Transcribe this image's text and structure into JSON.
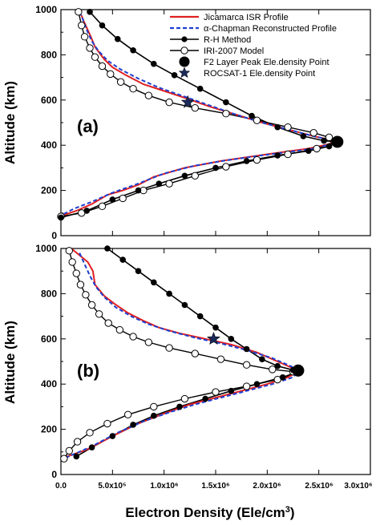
{
  "colors": {
    "isr": "#e02020",
    "chapman": "#1f3fd0",
    "rh": "#000000",
    "iri": "#000000",
    "star": "#1a2a5a"
  },
  "legend": {
    "isr": "Jicamarca ISR Profile",
    "chapman": "α-Chapman Reconstructed Profile",
    "rh": "R-H Method",
    "iri": "IRI-2007 Model",
    "peak": "F2 Layer Peak Ele.density Point",
    "rocsat": "ROCSAT-1 Ele.density Point"
  },
  "xlabel": "Electron Density (Ele/cm3)",
  "chart_data": [
    {
      "type": "line",
      "panel_label": "(a)",
      "xlim": [
        0,
        3000000
      ],
      "ylim": [
        0,
        1000
      ],
      "ylabel": "Altitude (km)",
      "yticks": [
        0,
        200,
        400,
        600,
        800,
        1000
      ],
      "peak": {
        "x": 2680000,
        "y": 415
      },
      "rocsat": {
        "x": 1230000,
        "y": 590
      },
      "series": [
        {
          "name": "Jicamarca ISR Profile",
          "key": "isr",
          "x": [
            200000,
            220000,
            290000,
            330000,
            420000,
            500000,
            630000,
            800000,
            1000000,
            1200000,
            1450000,
            1700000,
            1950000,
            2200000,
            2450000,
            2650000,
            2600000,
            2400000,
            2150000,
            1850000,
            1550000,
            1200000,
            900000,
            750000,
            600000,
            450000,
            300000,
            150000,
            20000
          ],
          "y": [
            975,
            950,
            880,
            835,
            780,
            745,
            710,
            670,
            640,
            610,
            570,
            535,
            500,
            470,
            440,
            420,
            405,
            385,
            370,
            350,
            330,
            300,
            260,
            225,
            200,
            180,
            140,
            110,
            90
          ]
        },
        {
          "name": "α-Chapman Reconstructed Profile",
          "key": "chapman",
          "x": [
            180000,
            210000,
            250000,
            300000,
            360000,
            450000,
            580000,
            750000,
            950000,
            1200000,
            1450000,
            1700000,
            1950000,
            2200000,
            2450000,
            2650000,
            2620000,
            2450000,
            2200000,
            1900000,
            1600000,
            1300000,
            1000000,
            750000,
            500000,
            300000,
            130000,
            0
          ],
          "y": [
            990,
            960,
            910,
            860,
            820,
            775,
            735,
            695,
            655,
            615,
            575,
            535,
            500,
            470,
            440,
            420,
            405,
            385,
            370,
            352,
            333,
            310,
            275,
            230,
            190,
            150,
            120,
            90
          ]
        }
      ],
      "rh": {
        "name": "R-H Method",
        "x": [
          280000,
          400000,
          550000,
          700000,
          900000,
          1100000,
          1350000,
          1600000,
          1850000,
          2100000,
          2350000,
          2550000,
          2680000,
          2600000,
          2400000,
          2100000,
          1800000,
          1500000,
          1200000,
          950000,
          750000,
          500000,
          250000,
          0
        ],
        "y": [
          990,
          930,
          870,
          820,
          760,
          710,
          650,
          590,
          530,
          480,
          440,
          420,
          415,
          395,
          375,
          355,
          330,
          300,
          265,
          230,
          200,
          160,
          110,
          80
        ]
      },
      "iri": {
        "name": "IRI-2007 Model",
        "x": [
          170000,
          200000,
          230000,
          280000,
          330000,
          400000,
          480000,
          580000,
          700000,
          850000,
          1050000,
          1300000,
          1600000,
          1900000,
          2200000,
          2450000,
          2600000,
          2650000,
          2480000,
          2200000,
          1900000,
          1600000,
          1300000,
          1050000,
          800000,
          600000,
          400000,
          200000,
          0
        ],
        "y": [
          990,
          930,
          880,
          830,
          790,
          750,
          715,
          680,
          650,
          620,
          590,
          565,
          540,
          510,
          480,
          455,
          435,
          415,
          385,
          360,
          335,
          305,
          265,
          230,
          200,
          165,
          130,
          100,
          85
        ]
      }
    },
    {
      "type": "line",
      "panel_label": "(b)",
      "xlim": [
        0,
        3000000
      ],
      "ylim": [
        0,
        1000
      ],
      "ylabel": "Altitude (km)",
      "yticks": [
        0,
        200,
        400,
        600,
        800,
        1000
      ],
      "xticks": [
        "0.0",
        "5.0x10⁵",
        "1.0x10⁶",
        "1.5x10⁶",
        "2.0x10⁶",
        "2.5x10⁶",
        "3.0x10⁶"
      ],
      "peak": {
        "x": 2300000,
        "y": 460
      },
      "rocsat": {
        "x": 1480000,
        "y": 600
      },
      "series": [
        {
          "name": "Jicamarca ISR Profile",
          "key": "isr",
          "x": [
            100000,
            260000,
            310000,
            330000,
            420000,
            520000,
            650000,
            800000,
            950000,
            1150000,
            1400000,
            1650000,
            1900000,
            2100000,
            2250000,
            2300000,
            2200000,
            2000000,
            1750000,
            1500000,
            1250000,
            1000000,
            750000,
            500000,
            250000,
            0
          ],
          "y": [
            1000,
            940,
            900,
            840,
            790,
            755,
            715,
            680,
            650,
            625,
            600,
            575,
            540,
            500,
            470,
            455,
            430,
            400,
            370,
            340,
            310,
            270,
            225,
            170,
            110,
            70
          ]
        },
        {
          "name": "α-Chapman Reconstructed Profile",
          "key": "chapman",
          "x": [
            180000,
            230000,
            280000,
            340000,
            420000,
            530000,
            680000,
            850000,
            1050000,
            1300000,
            1550000,
            1800000,
            2050000,
            2250000,
            2300000,
            2250000,
            2050000,
            1800000,
            1550000,
            1300000,
            1050000,
            800000,
            550000,
            300000,
            50000
          ],
          "y": [
            980,
            930,
            880,
            830,
            785,
            740,
            700,
            665,
            635,
            605,
            580,
            550,
            515,
            475,
            455,
            430,
            400,
            370,
            340,
            310,
            275,
            235,
            185,
            125,
            75
          ]
        }
      ],
      "rh": {
        "name": "R-H Method",
        "x": [
          450000,
          600000,
          750000,
          900000,
          1050000,
          1200000,
          1350000,
          1500000,
          1650000,
          1800000,
          1950000,
          2100000,
          2250000,
          2300000,
          2150000,
          1900000,
          1650000,
          1400000,
          1150000,
          900000,
          700000,
          500000,
          300000,
          150000
        ],
        "y": [
          1000,
          950,
          900,
          850,
          800,
          750,
          700,
          650,
          600,
          555,
          510,
          480,
          462,
          455,
          430,
          400,
          370,
          335,
          300,
          260,
          220,
          170,
          120,
          80
        ]
      },
      "iri": {
        "name": "IRI-2007 Model",
        "x": [
          80000,
          110000,
          150000,
          190000,
          240000,
          300000,
          370000,
          460000,
          570000,
          700000,
          850000,
          1050000,
          1300000,
          1550000,
          1800000,
          2050000,
          2250000,
          2300000,
          2100000,
          1800000,
          1500000,
          1200000,
          900000,
          650000,
          450000,
          280000,
          160000,
          80000,
          30000
        ],
        "y": [
          990,
          940,
          890,
          840,
          795,
          750,
          710,
          670,
          640,
          610,
          585,
          560,
          535,
          510,
          485,
          465,
          455,
          450,
          420,
          390,
          365,
          335,
          300,
          265,
          225,
          185,
          145,
          105,
          70
        ]
      }
    }
  ]
}
